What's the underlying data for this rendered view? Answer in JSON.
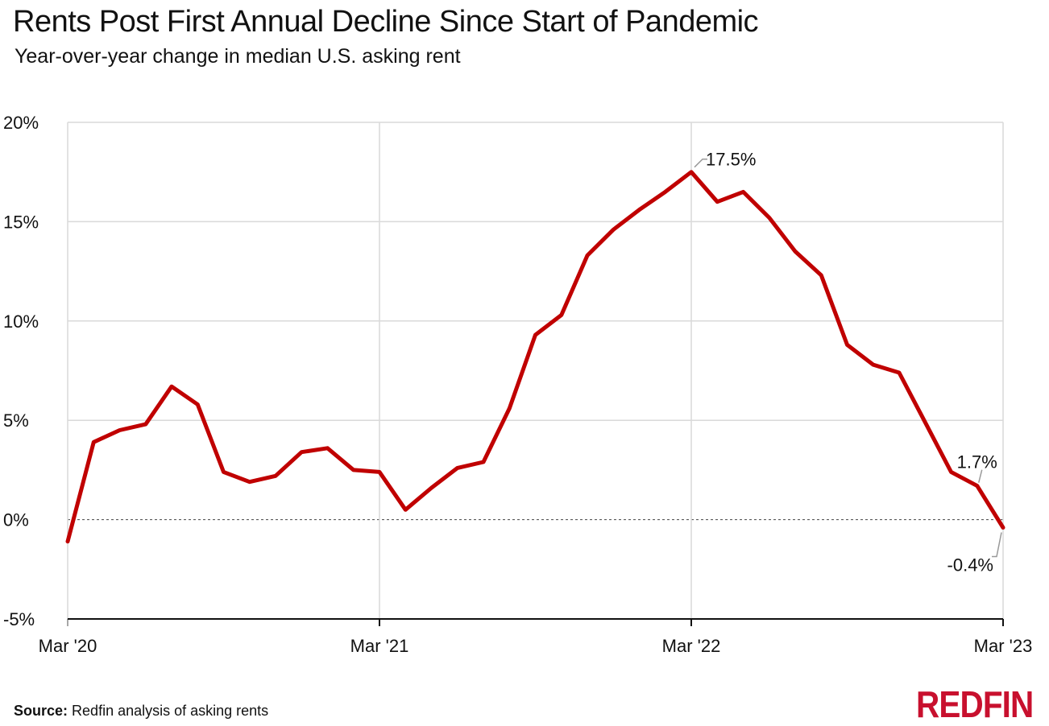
{
  "title": "Rents Post First Annual Decline Since Start of Pandemic",
  "subtitle": "Year-over-year change in median U.S. asking rent",
  "source_label": "Source:",
  "source_text": "Redfin analysis of asking rents",
  "logo_text": "REDFIN",
  "colors": {
    "line": "#c00000",
    "grid": "#d9d9d9",
    "logo": "#c8102e"
  },
  "chart_data": {
    "type": "line",
    "title": "Rents Post First Annual Decline Since Start of Pandemic",
    "subtitle": "Year-over-year change in median U.S. asking rent",
    "xlabel": "",
    "ylabel": "",
    "y_unit": "%",
    "ylim": [
      -5,
      20
    ],
    "yticks": [
      -5,
      0,
      5,
      10,
      15,
      20
    ],
    "ytick_labels": [
      "-5%",
      "0%",
      "5%",
      "10%",
      "15%",
      "20%"
    ],
    "xtick_labels": [
      "Mar '20",
      "Mar '21",
      "Mar '22",
      "Mar '23"
    ],
    "xtick_dates": [
      "2020-03",
      "2021-03",
      "2022-03",
      "2023-03"
    ],
    "grid": true,
    "zero_line": "dashed",
    "series": [
      {
        "name": "",
        "x": [
          "2020-03",
          "2020-04",
          "2020-05",
          "2020-06",
          "2020-07",
          "2020-08",
          "2020-09",
          "2020-10",
          "2020-11",
          "2020-12",
          "2021-01",
          "2021-02",
          "2021-03",
          "2021-04",
          "2021-05",
          "2021-06",
          "2021-07",
          "2021-08",
          "2021-09",
          "2021-10",
          "2021-11",
          "2021-12",
          "2022-01",
          "2022-02",
          "2022-03",
          "2022-04",
          "2022-05",
          "2022-06",
          "2022-07",
          "2022-08",
          "2022-09",
          "2022-10",
          "2022-11",
          "2022-12",
          "2023-01",
          "2023-02",
          "2023-03"
        ],
        "values": [
          -1.1,
          3.9,
          4.5,
          4.8,
          6.7,
          5.8,
          2.4,
          1.9,
          2.2,
          3.4,
          3.6,
          2.5,
          2.4,
          0.5,
          1.6,
          2.6,
          2.9,
          5.6,
          9.3,
          10.3,
          13.3,
          14.6,
          15.6,
          16.5,
          17.5,
          16.0,
          16.5,
          15.2,
          13.5,
          12.3,
          8.8,
          7.8,
          7.4,
          4.9,
          2.4,
          1.7,
          -0.4
        ]
      }
    ],
    "annotations": [
      {
        "x": "2022-03",
        "y": 17.5,
        "text": "17.5%"
      },
      {
        "x": "2023-02",
        "y": 1.7,
        "text": "1.7%"
      },
      {
        "x": "2023-03",
        "y": -0.4,
        "text": "-0.4%"
      }
    ]
  }
}
